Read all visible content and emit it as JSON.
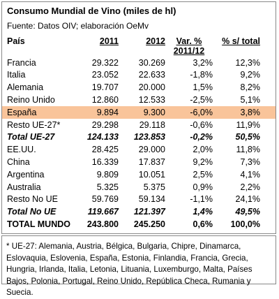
{
  "header": {
    "title": "Consumo Mundial de Vino (miles de hl)",
    "source": "Fuente: Datos OIV; elaboración OeMv"
  },
  "table": {
    "columns": [
      "País",
      "2011",
      "2012",
      "Var. %",
      "% s/ total"
    ],
    "subheader": "2011/12",
    "rows": [
      [
        "Francia",
        "29.322",
        "30.269",
        "3,2%",
        "12,3%"
      ],
      [
        "Italia",
        "23.052",
        "22.633",
        "-1,8%",
        "9,2%"
      ],
      [
        "Alemania",
        "19.707",
        "20.000",
        "1,5%",
        "8,2%"
      ],
      [
        "Reino Unido",
        "12.860",
        "12.533",
        "-2,5%",
        "5,1%"
      ],
      [
        "España",
        "9.894",
        "9.300",
        "-6,0%",
        "3,8%"
      ],
      [
        "Resto UE-27*",
        "29.298",
        "29.118",
        "-0,6%",
        "11,9%"
      ],
      [
        "Total UE-27",
        "124.133",
        "123.853",
        "-0,2%",
        "50,5%"
      ],
      [
        "EE.UU.",
        "28.425",
        "29.000",
        "2,0%",
        "11,8%"
      ],
      [
        "China",
        "16.339",
        "17.837",
        "9,2%",
        "7,3%"
      ],
      [
        "Argentina",
        "9.809",
        "10.051",
        "2,5%",
        "4,1%"
      ],
      [
        "Australia",
        "5.325",
        "5.375",
        "0,9%",
        "2,2%"
      ],
      [
        "Resto No UE",
        "59.769",
        "59.134",
        "-1,1%",
        "24,1%"
      ],
      [
        "Total No UE",
        "119.667",
        "121.397",
        "1,4%",
        "49,5%"
      ],
      [
        "TOTAL MUNDO",
        "243.800",
        "245.250",
        "0,6%",
        "100,0%"
      ]
    ]
  },
  "footnote": "* UE-27: Alemania, Austria, Bélgica, Bulgaria, Chipre, Dinamarca, Eslovaquia, Eslovenia, España, Estonia, Finlandia, Francia, Grecia, Hungria, Irlanda, Italia, Letonia, Lituania, Luxemburgo, Malta, Países Bajos, Polonia, Portugal, Reino Unido, República Checa, Rumania y Suecia."
}
